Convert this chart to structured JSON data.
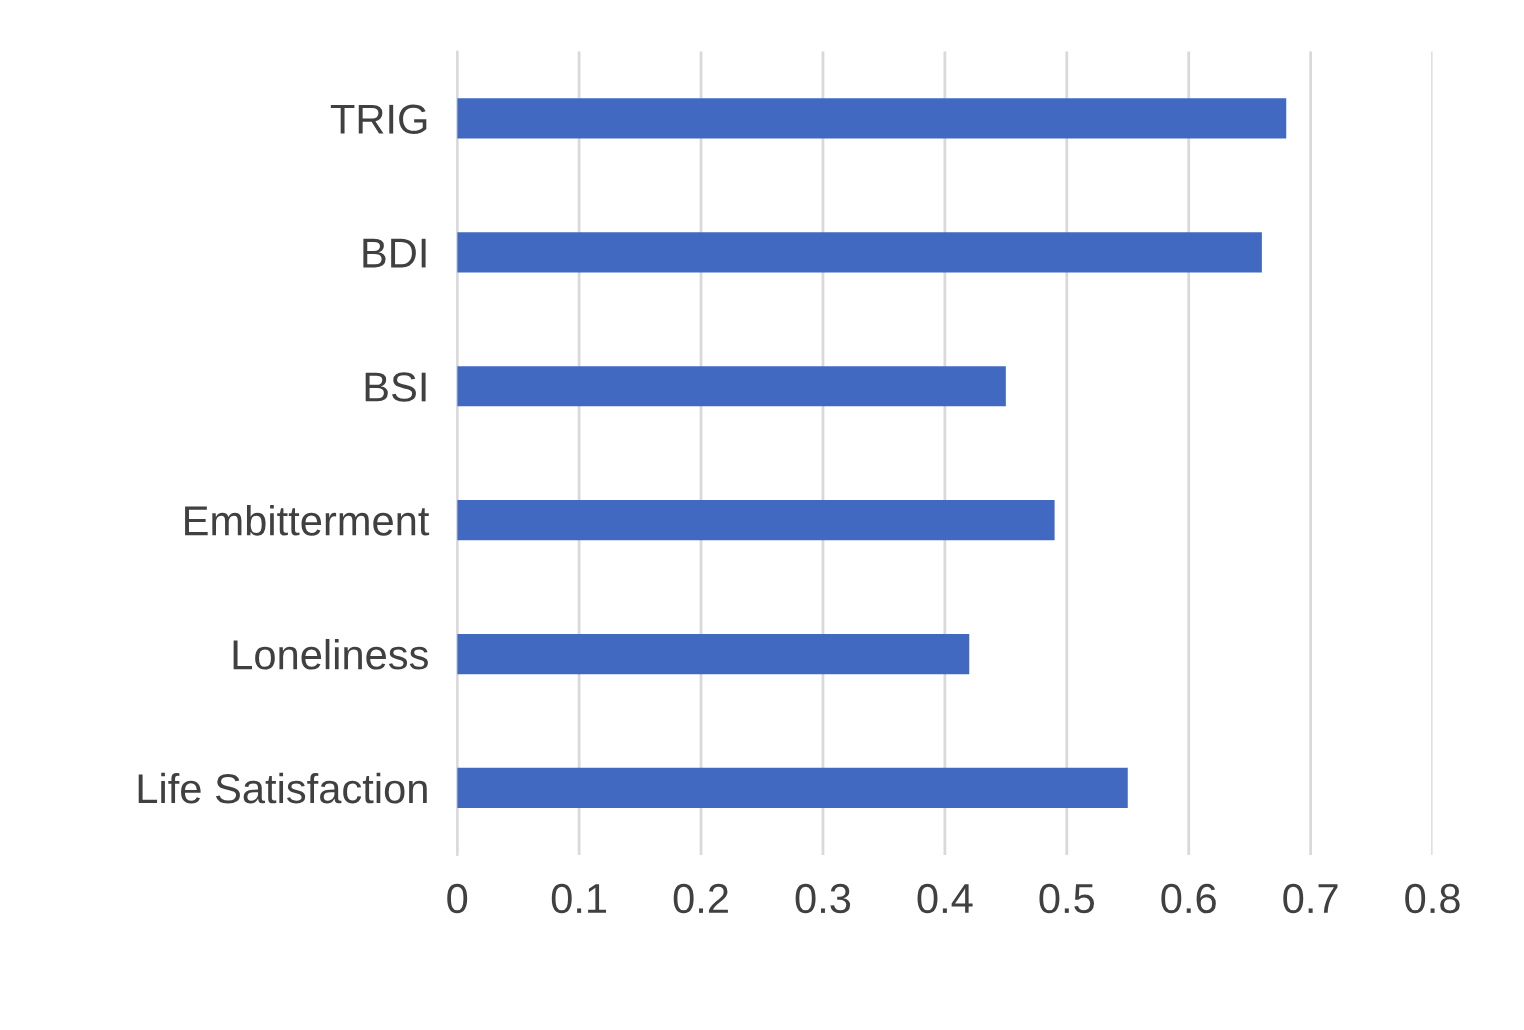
{
  "chart_data": {
    "type": "bar",
    "orientation": "horizontal",
    "categories": [
      "TRIG",
      "BDI",
      "BSI",
      "Embitterment",
      "Loneliness",
      "Life Satisfaction"
    ],
    "values": [
      0.68,
      0.66,
      0.45,
      0.49,
      0.42,
      0.55
    ],
    "color": "#4169c2",
    "xlim": [
      0,
      0.8
    ],
    "xticks": [
      0,
      0.1,
      0.2,
      0.3,
      0.4,
      0.5,
      0.6,
      0.7,
      0.8
    ],
    "grid": "x"
  }
}
